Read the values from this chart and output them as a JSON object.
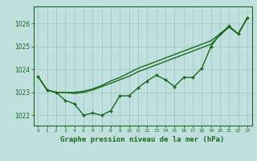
{
  "bg_color": "#c0e0e0",
  "grid_color": "#a0c8c8",
  "line_color": "#1a6b1a",
  "xlim": [
    -0.5,
    23.5
  ],
  "ylim": [
    1021.55,
    1026.75
  ],
  "yticks": [
    1022,
    1023,
    1024,
    1025,
    1026
  ],
  "xticks": [
    0,
    1,
    2,
    3,
    4,
    5,
    6,
    7,
    8,
    9,
    10,
    11,
    12,
    13,
    14,
    15,
    16,
    17,
    18,
    19,
    20,
    21,
    22,
    23
  ],
  "xlabel": "Graphe pression niveau de la mer (hPa)",
  "line1_y": [
    1023.7,
    1023.1,
    1023.0,
    1022.65,
    1022.5,
    1022.0,
    1022.1,
    1022.0,
    1022.2,
    1022.85,
    1022.85,
    1023.2,
    1023.5,
    1023.75,
    1023.55,
    1023.25,
    1023.65,
    1023.65,
    1024.05,
    1025.0,
    1025.55,
    1025.9,
    1025.55,
    1026.25
  ],
  "line2_y": [
    1023.7,
    1023.1,
    1023.0,
    1023.0,
    1022.95,
    1023.0,
    1023.1,
    1023.25,
    1023.4,
    1023.55,
    1023.7,
    1023.9,
    1024.05,
    1024.2,
    1024.35,
    1024.5,
    1024.65,
    1024.8,
    1024.95,
    1025.1,
    1025.5,
    1025.85,
    1025.55,
    1026.25
  ],
  "line3_y": [
    1023.7,
    1023.1,
    1023.0,
    1023.0,
    1023.0,
    1023.05,
    1023.15,
    1023.3,
    1023.5,
    1023.65,
    1023.85,
    1024.05,
    1024.2,
    1024.35,
    1024.5,
    1024.65,
    1024.8,
    1024.95,
    1025.1,
    1025.25,
    1025.55,
    1025.85,
    1025.55,
    1026.25
  ],
  "tick_fontsize": 5.0,
  "xlabel_fontsize": 6.5
}
